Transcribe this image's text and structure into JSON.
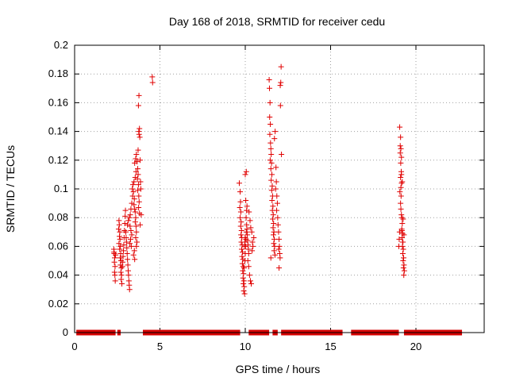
{
  "chart_data": {
    "type": "scatter",
    "title": "Day 168 of 2018, SRMTID for receiver cedu",
    "xlabel": "GPS time / hours",
    "ylabel": "SRMTID / TECUs",
    "xlim": [
      0,
      24
    ],
    "ylim": [
      0,
      0.2
    ],
    "grid": true,
    "marker": "+",
    "color": "#e00000",
    "x_ticks": [
      0,
      5,
      10,
      15,
      20
    ],
    "x_tick_labels": [
      "0",
      "5",
      "10",
      "15",
      "20"
    ],
    "y_ticks": [
      0,
      0.02,
      0.04,
      0.06,
      0.08,
      0.1,
      0.12,
      0.14,
      0.16,
      0.18,
      0.2
    ],
    "y_tick_labels": [
      "0",
      "0.02",
      "0.04",
      "0.06",
      "0.08",
      "0.1",
      "0.12",
      "0.14",
      "0.16",
      "0.18",
      "0.2"
    ],
    "zero_segments": [
      [
        0.1,
        2.4
      ],
      [
        2.5,
        2.7
      ],
      [
        4.0,
        9.7
      ],
      [
        10.2,
        11.4
      ],
      [
        11.6,
        11.9
      ],
      [
        12.1,
        15.7
      ],
      [
        16.2,
        19.0
      ],
      [
        19.3,
        22.7
      ]
    ],
    "points": [
      [
        2.3,
        0.058
      ],
      [
        2.32,
        0.055
      ],
      [
        2.35,
        0.052
      ],
      [
        2.33,
        0.049
      ],
      [
        2.37,
        0.046
      ],
      [
        2.34,
        0.042
      ],
      [
        2.36,
        0.04
      ],
      [
        2.38,
        0.036
      ],
      [
        2.31,
        0.056
      ],
      [
        2.4,
        0.054
      ],
      [
        2.6,
        0.078
      ],
      [
        2.62,
        0.075
      ],
      [
        2.58,
        0.072
      ],
      [
        2.65,
        0.07
      ],
      [
        2.63,
        0.067
      ],
      [
        2.66,
        0.065
      ],
      [
        2.6,
        0.062
      ],
      [
        2.68,
        0.06
      ],
      [
        2.64,
        0.058
      ],
      [
        2.7,
        0.055
      ],
      [
        2.67,
        0.052
      ],
      [
        2.72,
        0.05
      ],
      [
        2.69,
        0.047
      ],
      [
        2.74,
        0.045
      ],
      [
        2.71,
        0.042
      ],
      [
        2.75,
        0.04
      ],
      [
        2.73,
        0.037
      ],
      [
        2.77,
        0.034
      ],
      [
        2.8,
        0.046
      ],
      [
        2.82,
        0.049
      ],
      [
        2.84,
        0.053
      ],
      [
        2.86,
        0.057
      ],
      [
        2.88,
        0.061
      ],
      [
        2.9,
        0.066
      ],
      [
        2.92,
        0.071
      ],
      [
        2.94,
        0.076
      ],
      [
        2.96,
        0.081
      ],
      [
        2.98,
        0.085
      ],
      [
        3.0,
        0.07
      ],
      [
        3.02,
        0.066
      ],
      [
        3.04,
        0.063
      ],
      [
        3.06,
        0.059
      ],
      [
        3.08,
        0.055
      ],
      [
        3.1,
        0.051
      ],
      [
        3.12,
        0.047
      ],
      [
        3.14,
        0.043
      ],
      [
        3.16,
        0.04
      ],
      [
        3.18,
        0.036
      ],
      [
        3.2,
        0.033
      ],
      [
        3.22,
        0.03
      ],
      [
        3.1,
        0.075
      ],
      [
        3.15,
        0.078
      ],
      [
        3.2,
        0.08
      ],
      [
        3.25,
        0.074
      ],
      [
        3.3,
        0.071
      ],
      [
        3.35,
        0.068
      ],
      [
        3.28,
        0.065
      ],
      [
        3.24,
        0.062
      ],
      [
        3.32,
        0.06
      ],
      [
        3.26,
        0.082
      ],
      [
        3.3,
        0.086
      ],
      [
        3.35,
        0.09
      ],
      [
        3.4,
        0.095
      ],
      [
        3.38,
        0.1
      ],
      [
        3.42,
        0.103
      ],
      [
        3.45,
        0.098
      ],
      [
        3.5,
        0.093
      ],
      [
        3.48,
        0.089
      ],
      [
        3.52,
        0.086
      ],
      [
        3.55,
        0.084
      ],
      [
        3.58,
        0.08
      ],
      [
        3.55,
        0.077
      ],
      [
        3.6,
        0.074
      ],
      [
        3.62,
        0.07
      ],
      [
        3.58,
        0.066
      ],
      [
        3.65,
        0.063
      ],
      [
        3.62,
        0.06
      ],
      [
        3.5,
        0.057
      ],
      [
        3.45,
        0.054
      ],
      [
        3.52,
        0.051
      ],
      [
        3.48,
        0.105
      ],
      [
        3.55,
        0.108
      ],
      [
        3.6,
        0.112
      ],
      [
        3.52,
        0.118
      ],
      [
        3.58,
        0.121
      ],
      [
        3.62,
        0.124
      ],
      [
        3.66,
        0.119
      ],
      [
        3.7,
        0.114
      ],
      [
        3.72,
        0.11
      ],
      [
        3.68,
        0.107
      ],
      [
        3.74,
        0.103
      ],
      [
        3.7,
        0.099
      ],
      [
        3.76,
        0.095
      ],
      [
        3.78,
        0.091
      ],
      [
        3.75,
        0.087
      ],
      [
        3.8,
        0.083
      ],
      [
        3.72,
        0.127
      ],
      [
        3.76,
        0.14
      ],
      [
        3.8,
        0.142
      ],
      [
        3.78,
        0.138
      ],
      [
        3.82,
        0.136
      ],
      [
        3.77,
        0.165
      ],
      [
        3.74,
        0.158
      ],
      [
        3.84,
        0.12
      ],
      [
        3.86,
        0.105
      ],
      [
        3.88,
        0.1
      ],
      [
        3.84,
        0.075
      ],
      [
        3.9,
        0.082
      ],
      [
        4.55,
        0.178
      ],
      [
        4.57,
        0.174
      ],
      [
        9.65,
        0.104
      ],
      [
        9.7,
        0.098
      ],
      [
        9.72,
        0.091
      ],
      [
        9.68,
        0.087
      ],
      [
        9.74,
        0.084
      ],
      [
        9.7,
        0.08
      ],
      [
        9.76,
        0.077
      ],
      [
        9.73,
        0.074
      ],
      [
        9.78,
        0.071
      ],
      [
        9.75,
        0.068
      ],
      [
        9.8,
        0.066
      ],
      [
        9.77,
        0.063
      ],
      [
        9.82,
        0.061
      ],
      [
        9.79,
        0.058
      ],
      [
        9.84,
        0.056
      ],
      [
        9.81,
        0.053
      ],
      [
        9.86,
        0.051
      ],
      [
        9.83,
        0.048
      ],
      [
        9.88,
        0.046
      ],
      [
        9.85,
        0.043
      ],
      [
        9.9,
        0.041
      ],
      [
        9.87,
        0.038
      ],
      [
        9.92,
        0.036
      ],
      [
        9.89,
        0.034
      ],
      [
        9.94,
        0.032
      ],
      [
        9.91,
        0.029
      ],
      [
        9.96,
        0.027
      ],
      [
        9.93,
        0.045
      ],
      [
        9.98,
        0.05
      ],
      [
        10.0,
        0.055
      ],
      [
        10.02,
        0.06
      ],
      [
        10.04,
        0.065
      ],
      [
        10.06,
        0.07
      ],
      [
        10.08,
        0.075
      ],
      [
        10.1,
        0.072
      ],
      [
        10.12,
        0.068
      ],
      [
        10.14,
        0.064
      ],
      [
        10.16,
        0.061
      ],
      [
        10.18,
        0.058
      ],
      [
        10.2,
        0.055
      ],
      [
        10.05,
        0.08
      ],
      [
        10.08,
        0.085
      ],
      [
        10.1,
        0.088
      ],
      [
        10.03,
        0.092
      ],
      [
        10.0,
        0.11
      ],
      [
        10.06,
        0.112
      ],
      [
        10.15,
        0.05
      ],
      [
        10.2,
        0.046
      ],
      [
        10.25,
        0.04
      ],
      [
        10.3,
        0.036
      ],
      [
        10.35,
        0.034
      ],
      [
        10.4,
        0.057
      ],
      [
        10.45,
        0.06
      ],
      [
        10.5,
        0.066
      ],
      [
        10.42,
        0.063
      ],
      [
        10.38,
        0.07
      ],
      [
        10.32,
        0.073
      ],
      [
        10.28,
        0.078
      ],
      [
        10.22,
        0.084
      ],
      [
        9.95,
        0.06
      ],
      [
        9.97,
        0.063
      ],
      [
        9.99,
        0.066
      ],
      [
        11.4,
        0.176
      ],
      [
        11.42,
        0.17
      ],
      [
        11.45,
        0.16
      ],
      [
        11.43,
        0.15
      ],
      [
        11.47,
        0.145
      ],
      [
        11.44,
        0.138
      ],
      [
        11.48,
        0.132
      ],
      [
        11.5,
        0.128
      ],
      [
        11.52,
        0.124
      ],
      [
        11.46,
        0.12
      ],
      [
        11.54,
        0.118
      ],
      [
        11.5,
        0.114
      ],
      [
        11.56,
        0.11
      ],
      [
        11.52,
        0.106
      ],
      [
        11.58,
        0.102
      ],
      [
        11.55,
        0.099
      ],
      [
        11.6,
        0.095
      ],
      [
        11.57,
        0.092
      ],
      [
        11.62,
        0.088
      ],
      [
        11.59,
        0.085
      ],
      [
        11.64,
        0.082
      ],
      [
        11.61,
        0.079
      ],
      [
        11.66,
        0.076
      ],
      [
        11.63,
        0.073
      ],
      [
        11.68,
        0.07
      ],
      [
        11.65,
        0.068
      ],
      [
        11.7,
        0.065
      ],
      [
        11.67,
        0.062
      ],
      [
        11.72,
        0.06
      ],
      [
        11.69,
        0.057
      ],
      [
        11.74,
        0.054
      ],
      [
        11.71,
        0.135
      ],
      [
        11.75,
        0.14
      ],
      [
        11.8,
        0.115
      ],
      [
        11.82,
        0.105
      ],
      [
        11.78,
        0.1
      ],
      [
        11.85,
        0.095
      ],
      [
        11.88,
        0.09
      ],
      [
        11.84,
        0.085
      ],
      [
        11.9,
        0.08
      ],
      [
        11.92,
        0.075
      ],
      [
        11.95,
        0.07
      ],
      [
        11.98,
        0.065
      ],
      [
        12.0,
        0.06
      ],
      [
        11.96,
        0.058
      ],
      [
        12.02,
        0.055
      ],
      [
        12.04,
        0.052
      ],
      [
        11.98,
        0.045
      ],
      [
        12.1,
        0.185
      ],
      [
        12.05,
        0.172
      ],
      [
        12.08,
        0.174
      ],
      [
        12.06,
        0.158
      ],
      [
        12.12,
        0.124
      ],
      [
        11.5,
        0.052
      ],
      [
        19.05,
        0.143
      ],
      [
        19.1,
        0.136
      ],
      [
        19.08,
        0.13
      ],
      [
        19.12,
        0.128
      ],
      [
        19.15,
        0.122
      ],
      [
        19.11,
        0.118
      ],
      [
        19.14,
        0.112
      ],
      [
        19.1,
        0.108
      ],
      [
        19.16,
        0.104
      ],
      [
        19.06,
        0.098
      ],
      [
        19.13,
        0.095
      ],
      [
        19.1,
        0.09
      ],
      [
        19.12,
        0.086
      ],
      [
        19.15,
        0.082
      ],
      [
        19.18,
        0.08
      ],
      [
        19.2,
        0.076
      ],
      [
        19.17,
        0.072
      ],
      [
        19.22,
        0.069
      ],
      [
        19.19,
        0.066
      ],
      [
        19.24,
        0.063
      ],
      [
        19.21,
        0.06
      ],
      [
        19.26,
        0.058
      ],
      [
        19.23,
        0.055
      ],
      [
        19.28,
        0.052
      ],
      [
        19.25,
        0.05
      ],
      [
        19.3,
        0.047
      ],
      [
        19.27,
        0.045
      ],
      [
        19.32,
        0.043
      ],
      [
        19.29,
        0.04
      ],
      [
        19.0,
        0.06
      ],
      [
        19.02,
        0.065
      ],
      [
        19.04,
        0.07
      ],
      [
        19.15,
        0.11
      ],
      [
        19.2,
        0.105
      ],
      [
        19.25,
        0.079
      ],
      [
        19.3,
        0.068
      ],
      [
        19.22,
        0.063
      ],
      [
        19.18,
        0.071
      ],
      [
        19.12,
        0.101
      ],
      [
        19.08,
        0.125
      ]
    ]
  }
}
